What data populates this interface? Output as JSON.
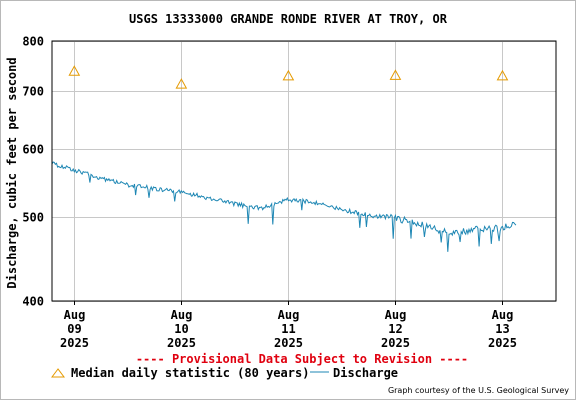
{
  "chart_data": {
    "type": "line",
    "title": "USGS 13333000 GRANDE RONDE RIVER AT TROY, OR",
    "ylabel": "Discharge, cubic feet per second",
    "xlabel": "",
    "y_scale": "log",
    "ylim": [
      400,
      800
    ],
    "y_ticks": [
      {
        "value": 400,
        "label": "400"
      },
      {
        "value": 500,
        "label": "500"
      },
      {
        "value": 600,
        "label": "600"
      },
      {
        "value": 700,
        "label": "700"
      },
      {
        "value": 800,
        "label": "800"
      }
    ],
    "xlim": [
      "2025-08-08 19:00",
      "2025-08-13 12:00"
    ],
    "x_ticks": [
      {
        "value": "2025-08-09 00:00",
        "line1": "Aug",
        "line2": "09",
        "line3": "2025"
      },
      {
        "value": "2025-08-10 00:00",
        "line1": "Aug",
        "line2": "10",
        "line3": "2025"
      },
      {
        "value": "2025-08-11 00:00",
        "line1": "Aug",
        "line2": "11",
        "line3": "2025"
      },
      {
        "value": "2025-08-12 00:00",
        "line1": "Aug",
        "line2": "12",
        "line3": "2025"
      },
      {
        "value": "2025-08-13 00:00",
        "line1": "Aug",
        "line2": "13",
        "line3": "2025"
      }
    ],
    "grid": true,
    "series": [
      {
        "name": "Discharge",
        "color": "#1e87b4",
        "interval_minutes": 15,
        "start": "2025-08-08 19:00",
        "anchors": [
          {
            "t": "2025-08-08 19:00",
            "v": 577
          },
          {
            "t": "2025-08-09 00:00",
            "v": 567
          },
          {
            "t": "2025-08-09 06:00",
            "v": 555
          },
          {
            "t": "2025-08-09 12:00",
            "v": 545
          },
          {
            "t": "2025-08-10 00:00",
            "v": 535
          },
          {
            "t": "2025-08-10 12:00",
            "v": 518
          },
          {
            "t": "2025-08-10 18:00",
            "v": 512
          },
          {
            "t": "2025-08-11 00:00",
            "v": 524
          },
          {
            "t": "2025-08-11 06:00",
            "v": 520
          },
          {
            "t": "2025-08-11 12:00",
            "v": 510
          },
          {
            "t": "2025-08-11 18:00",
            "v": 503
          },
          {
            "t": "2025-08-12 00:00",
            "v": 499
          },
          {
            "t": "2025-08-12 06:00",
            "v": 490
          },
          {
            "t": "2025-08-12 12:00",
            "v": 480
          },
          {
            "t": "2025-08-13 00:00",
            "v": 487
          },
          {
            "t": "2025-08-13 03:00",
            "v": 492
          }
        ]
      }
    ],
    "medians": {
      "name": "Median daily statistic (80 years)",
      "color": "#e59a00",
      "points": [
        {
          "t": "2025-08-09 00:00",
          "v": 738
        },
        {
          "t": "2025-08-10 00:00",
          "v": 713
        },
        {
          "t": "2025-08-11 00:00",
          "v": 729
        },
        {
          "t": "2025-08-12 00:00",
          "v": 730
        },
        {
          "t": "2025-08-13 00:00",
          "v": 729
        }
      ]
    },
    "provisional": "---- Provisional Data Subject to Revision ----",
    "legend": {
      "median_label": "Median daily statistic (80 years)",
      "discharge_label": "Discharge"
    },
    "credit": "Graph courtesy of the U.S. Geological Survey"
  }
}
